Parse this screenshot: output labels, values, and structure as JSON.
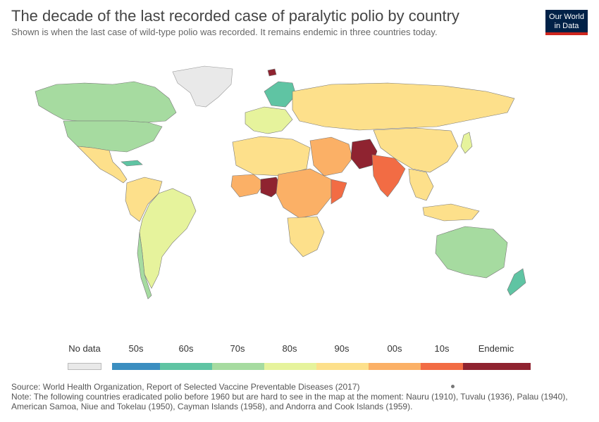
{
  "header": {
    "title": "The decade of the last recorded case of paralytic polio by country",
    "subtitle": "Shown is when the last case of wild-type polio was recorded. It remains endemic in three countries today."
  },
  "logo": {
    "line1": "Our World",
    "line2": "in Data"
  },
  "legend": {
    "nodata": {
      "label": "No data",
      "color": "#e9e9e9"
    },
    "bins": [
      {
        "label": "50s",
        "color": "#3b8ec0"
      },
      {
        "label": "60s",
        "color": "#5fc4a3"
      },
      {
        "label": "70s",
        "color": "#a6dba0"
      },
      {
        "label": "80s",
        "color": "#e6f39c"
      },
      {
        "label": "90s",
        "color": "#fde08b"
      },
      {
        "label": "00s",
        "color": "#fbb066"
      },
      {
        "label": "10s",
        "color": "#f26c44"
      },
      {
        "label": "Endemic",
        "color": "#8f2330"
      }
    ]
  },
  "footer": {
    "source": "Source: World Health Organization, Report of Selected Vaccine Preventable Diseases (2017)",
    "note": "Note: The following countries eradicated polio before 1960 but are hard to see in the map at the moment: Nauru (1910), Tuvalu (1936), Palau (1940), American Samoa, Niue and Tokelau (1950), Cayman Islands (1958), and Andorra and Cook Islands (1959)."
  }
}
